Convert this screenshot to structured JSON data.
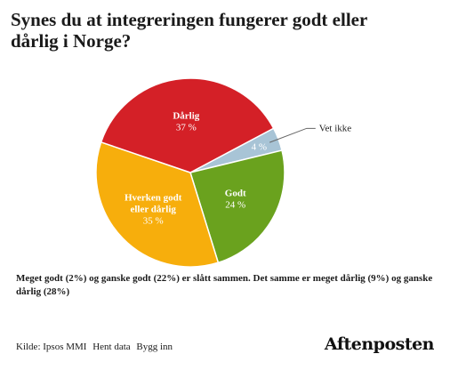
{
  "title": "Synes du at integreringen fungerer godt eller\ndårlig i Norge?",
  "note": "Meget godt (2%) og ganske godt (22%) er slått sammen. Det samme er meget dårlig (9%) og ganske dårlig (28%)",
  "footer": {
    "source": "Kilde: Ipsos MMI",
    "download": "Hent data",
    "embed": "Bygg inn"
  },
  "logo": "Aftenposten",
  "chart_data": {
    "type": "pie",
    "start_angle_deg": 62,
    "slices": [
      {
        "label": "Vet ikke",
        "value": 4,
        "value_label": "4 %",
        "color": "#a8c4d6",
        "label_outside": true
      },
      {
        "label": "Godt",
        "value": 24,
        "value_label": "24 %",
        "color": "#6aa21e"
      },
      {
        "label": "Hverken godt eller dårlig",
        "value": 35,
        "value_label": "35 %",
        "color": "#f7ae0c"
      },
      {
        "label": "Dårlig",
        "value": 37,
        "value_label": "37 %",
        "color": "#d42027"
      }
    ]
  }
}
